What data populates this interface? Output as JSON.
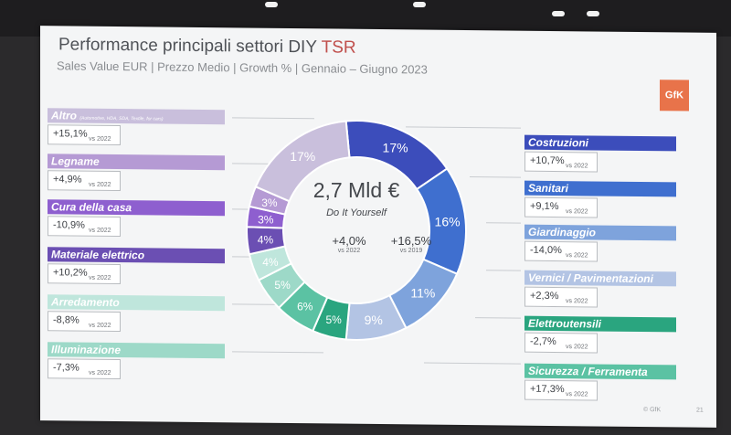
{
  "slide": {
    "title_main": "Performance principali settori DIY",
    "title_accent": "TSR",
    "subtitle": "Sales Value EUR | Prezzo Medio | Growth % | Gennaio – Giugno 2023",
    "logo": "GfK",
    "copyright": "© GfK",
    "page_number": "21"
  },
  "center": {
    "total": "2,7 Mld €",
    "label": "Do It Yourself",
    "growth_2022": "+4,0%",
    "growth_2022_vs": "vs 2022",
    "growth_2019": "+16,5%",
    "growth_2019_vs": "vs 2019"
  },
  "sectors_left": [
    {
      "name": "Altro",
      "note": "(Automotive, HDA, SDA, Textile, for cars)",
      "growth": "+15,1%",
      "vs": "vs 2022",
      "color": "#c9bfdc"
    },
    {
      "name": "Legname",
      "note": "",
      "growth": "+4,9%",
      "vs": "vs 2022",
      "color": "#b59ad4"
    },
    {
      "name": "Cura della casa",
      "note": "",
      "growth": "-10,9%",
      "vs": "vs 2022",
      "color": "#8e5fcf"
    },
    {
      "name": "Materiale elettrico",
      "note": "",
      "growth": "+10,2%",
      "vs": "vs 2022",
      "color": "#6b4fb3"
    },
    {
      "name": "Arredamento",
      "note": "",
      "growth": "-8,8%",
      "vs": "vs 2022",
      "color": "#bfe6dc"
    },
    {
      "name": "Illuminazione",
      "note": "",
      "growth": "-7,3%",
      "vs": "vs 2022",
      "color": "#9dd9c8"
    }
  ],
  "sectors_right": [
    {
      "name": "Costruzioni",
      "growth": "+10,7%",
      "vs": "vs 2022",
      "color": "#3c4dbb"
    },
    {
      "name": "Sanitari",
      "growth": "+9,1%",
      "vs": "vs 2022",
      "color": "#3f6fcf"
    },
    {
      "name": "Giardinaggio",
      "growth": "-14,0%",
      "vs": "vs 2022",
      "color": "#7ea3dc"
    },
    {
      "name": "Vernici / Pavimentazioni",
      "growth": "+2,3%",
      "vs": "vs 2022",
      "color": "#b3c4e4"
    },
    {
      "name": "Elettroutensili",
      "growth": "-2,7%",
      "vs": "vs 2022",
      "color": "#2aa57f"
    },
    {
      "name": "Sicurezza / Ferramenta",
      "growth": "+17,3%",
      "vs": "vs 2022",
      "color": "#5bc2a3"
    }
  ],
  "chart_data": {
    "type": "pie",
    "variant": "donut",
    "title": "Performance principali settori DIY TSR",
    "slices": [
      {
        "label": "Costruzioni",
        "value": 17,
        "display": "17%",
        "color": "#3c4dbb"
      },
      {
        "label": "Sanitari",
        "value": 16,
        "display": "16%",
        "color": "#3f6fcf"
      },
      {
        "label": "Giardinaggio",
        "value": 11,
        "display": "11%",
        "color": "#7ea3dc"
      },
      {
        "label": "Vernici / Pavimentazioni",
        "value": 9,
        "display": "9%",
        "color": "#b3c4e4"
      },
      {
        "label": "Elettroutensili",
        "value": 5,
        "display": "5%",
        "color": "#2aa57f"
      },
      {
        "label": "Sicurezza / Ferramenta",
        "value": 6,
        "display": "6%",
        "color": "#5bc2a3"
      },
      {
        "label": "Illuminazione",
        "value": 5,
        "display": "5%",
        "color": "#9dd9c8"
      },
      {
        "label": "Arredamento",
        "value": 4,
        "display": "4%",
        "color": "#bfe6dc"
      },
      {
        "label": "Materiale elettrico",
        "value": 4,
        "display": "4%",
        "color": "#6b4fb3"
      },
      {
        "label": "Cura della casa",
        "value": 3,
        "display": "3%",
        "color": "#8e5fcf"
      },
      {
        "label": "Legname",
        "value": 3,
        "display": "3%",
        "color": "#b59ad4"
      },
      {
        "label": "Altro",
        "value": 17,
        "display": "17%",
        "color": "#c9bfdc"
      }
    ]
  }
}
